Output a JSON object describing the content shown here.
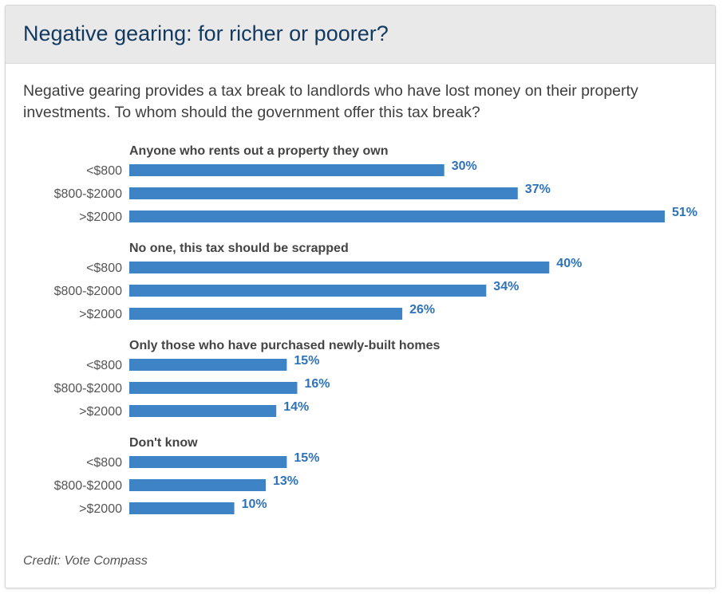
{
  "header": {
    "title": "Negative gearing: for richer or poorer?"
  },
  "subtitle": "Negative gearing provides a tax break to landlords who have lost money on their property investments. To whom should the government offer this tax break?",
  "credit": "Credit: Vote Compass",
  "colors": {
    "bar": "#3f83c7",
    "value_label": "#2e73b8",
    "group_label": "#444444",
    "category_label": "#555555"
  },
  "chart_data": {
    "type": "bar",
    "orientation": "horizontal",
    "title": "Negative gearing: for richer or poorer?",
    "categories": [
      "<$800",
      "$800-$2000",
      ">$2000"
    ],
    "unit": "%",
    "xlim": [
      0,
      51
    ],
    "series": [
      {
        "name": "Anyone who rents out a property they own",
        "values": [
          30,
          37,
          51
        ]
      },
      {
        "name": "No one, this tax should be scrapped",
        "values": [
          40,
          34,
          26
        ]
      },
      {
        "name": "Only those who have purchased newly-built homes",
        "values": [
          15,
          16,
          14
        ]
      },
      {
        "name": "Don't know",
        "values": [
          15,
          13,
          10
        ]
      }
    ]
  }
}
